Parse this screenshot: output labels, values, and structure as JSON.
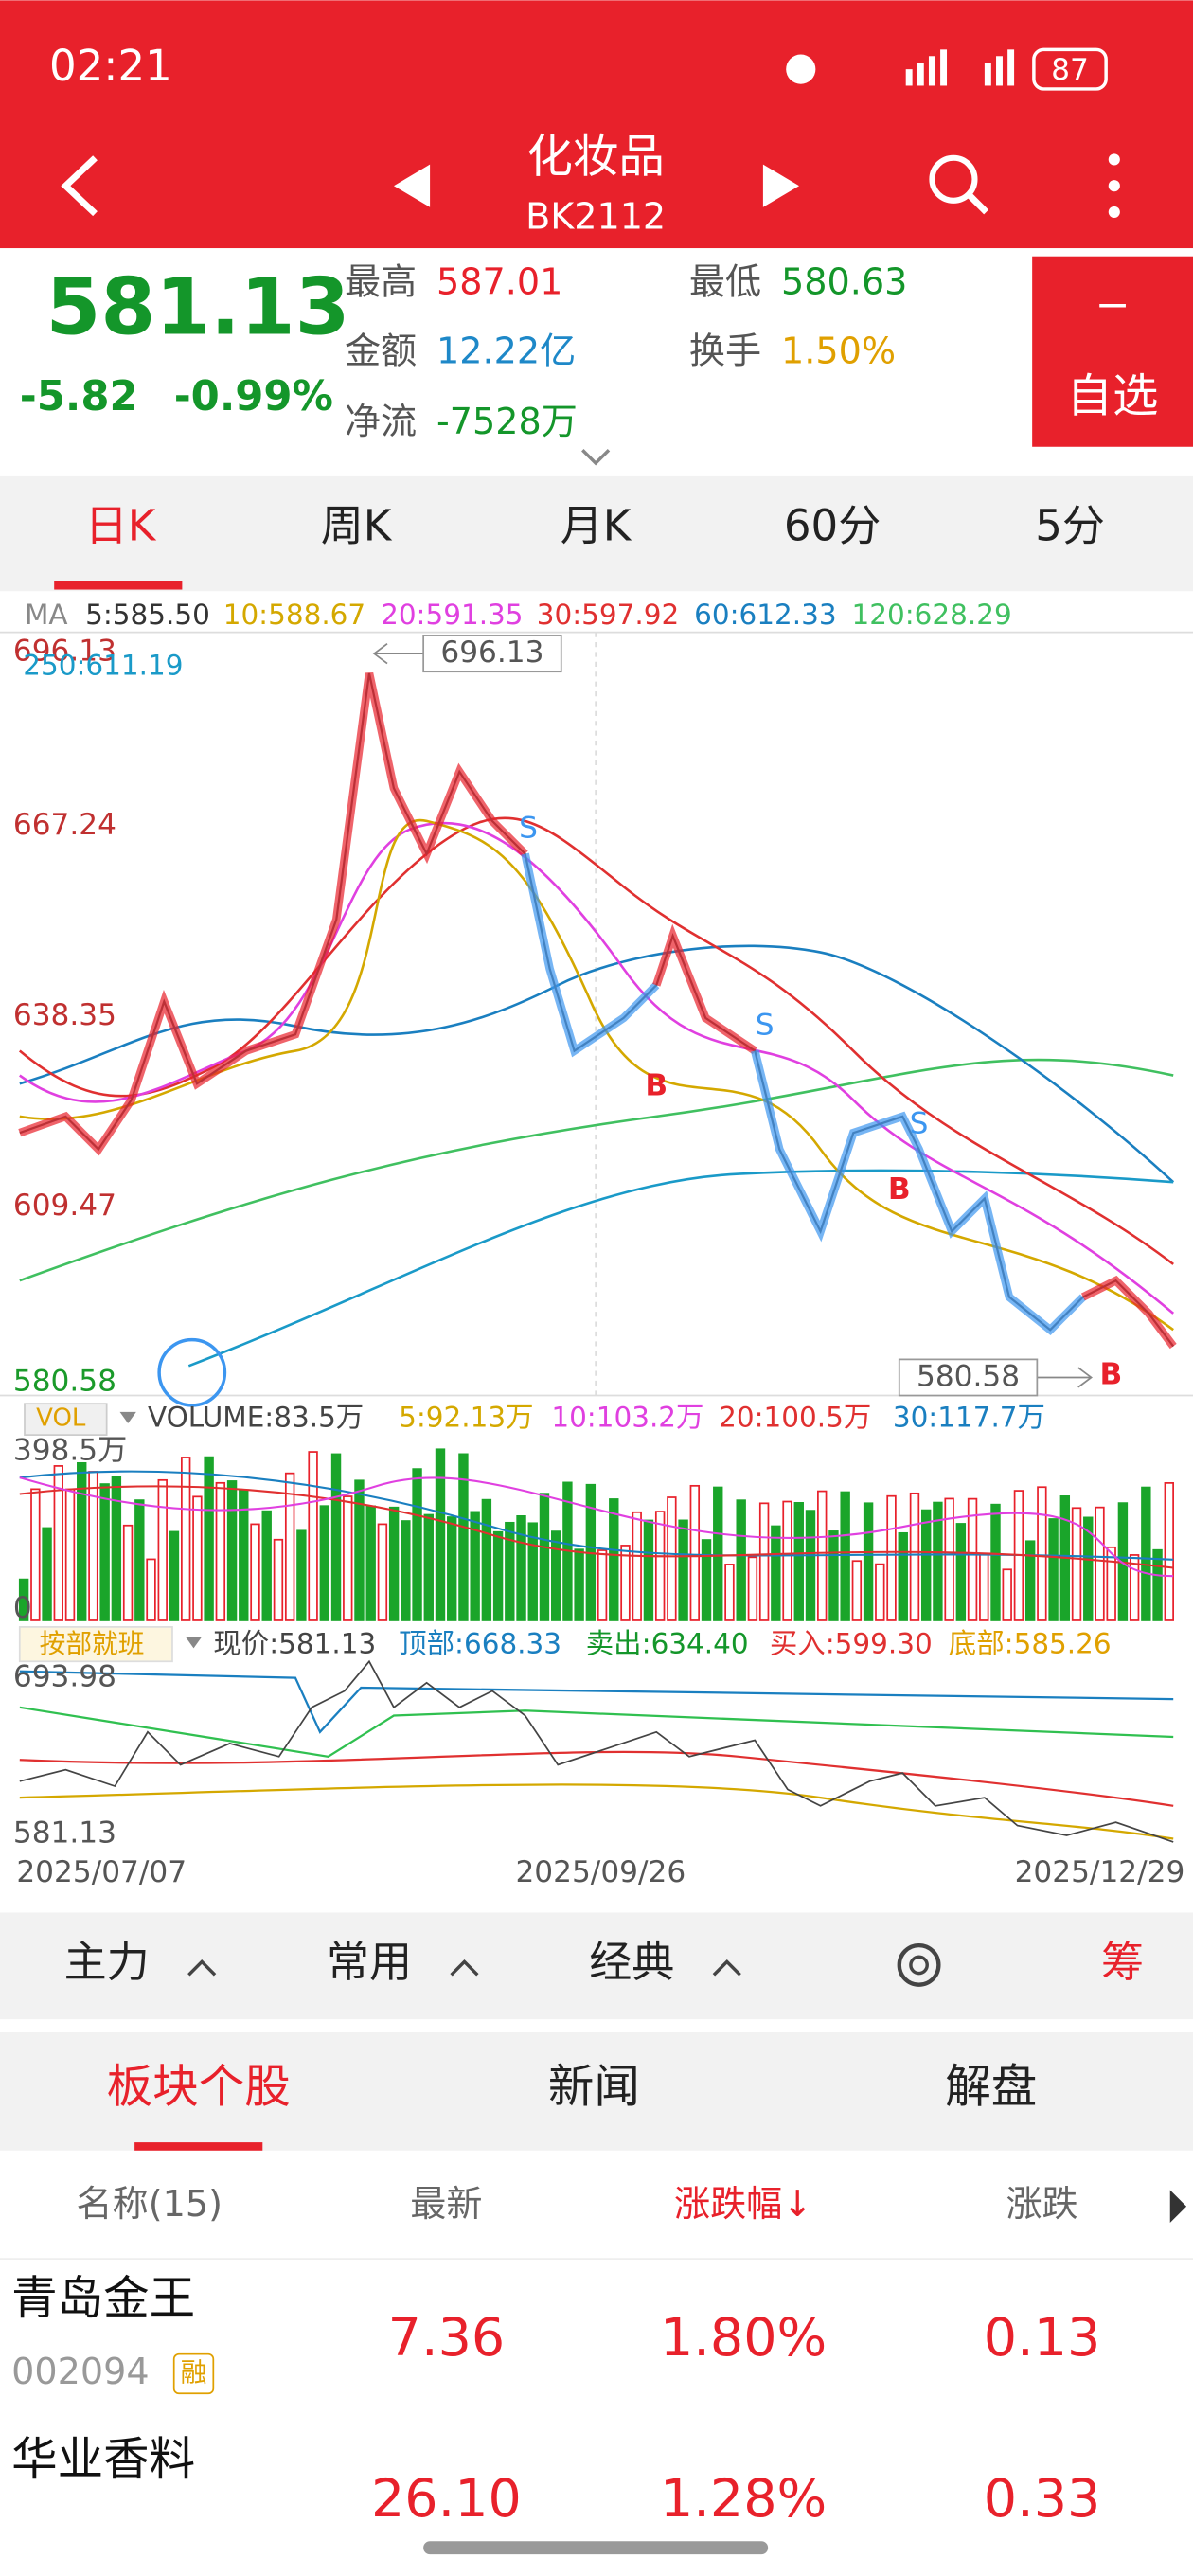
{
  "status": {
    "time": "02:21",
    "battery": "87"
  },
  "header": {
    "title": "化妆品",
    "code": "BK2112"
  },
  "quote": {
    "price": "581.13",
    "change": "-5.82",
    "change_pct": "-0.99%",
    "fields": [
      {
        "label": "最高",
        "value": "587.01"
      },
      {
        "label": "最低",
        "value": "580.63"
      },
      {
        "label": "金额",
        "value": "12.22亿"
      },
      {
        "label": "换手",
        "value": "1.50%"
      },
      {
        "label": "净流",
        "value": "-7528万"
      }
    ],
    "watch_button": "自选"
  },
  "period_tabs": [
    "日K",
    "周K",
    "月K",
    "60分",
    "5分"
  ],
  "ma_legend": [
    "MA",
    "5:585.50",
    "10:588.67",
    "20:591.35",
    "30:597.92",
    "60:612.33",
    "120:628.29"
  ],
  "main_chart": {
    "yticks": [
      "696.13",
      "667.24",
      "638.35",
      "609.47",
      "580.58"
    ],
    "ma250": "250:611.19",
    "high_label": "696.13",
    "low_label": "580.58",
    "signals": [
      "S",
      "B",
      "S",
      "B",
      "S",
      "B"
    ]
  },
  "volume": {
    "label": "VOL",
    "legend": [
      "VOLUME:83.5万",
      "5:92.13万",
      "10:103.2万",
      "20:100.5万",
      "30:117.7万"
    ],
    "ymax": "398.5万",
    "ymin": "0"
  },
  "indicator": {
    "name": "按部就班",
    "legend": [
      "现价:581.13",
      "顶部:668.33",
      "卖出:634.40",
      "买入:599.30",
      "底部:585.26"
    ],
    "ymax": "693.98",
    "ymin": "581.13"
  },
  "dates": [
    "2025/07/07",
    "2025/09/26",
    "2025/12/29"
  ],
  "toolbar": [
    "主力",
    "常用",
    "经典",
    "筹"
  ],
  "content_tabs": [
    "板块个股",
    "新闻",
    "解盘"
  ],
  "table": {
    "header": [
      "名称(15)",
      "最新",
      "涨跌幅↓",
      "涨跌"
    ],
    "rows": [
      {
        "name": "青岛金王",
        "code": "002094",
        "tag": "融",
        "cells": [
          "7.36",
          "1.80%",
          "0.13"
        ]
      },
      {
        "name": "华业香料",
        "cells": [
          "26.10",
          "1.28%",
          "0.33"
        ]
      }
    ]
  }
}
